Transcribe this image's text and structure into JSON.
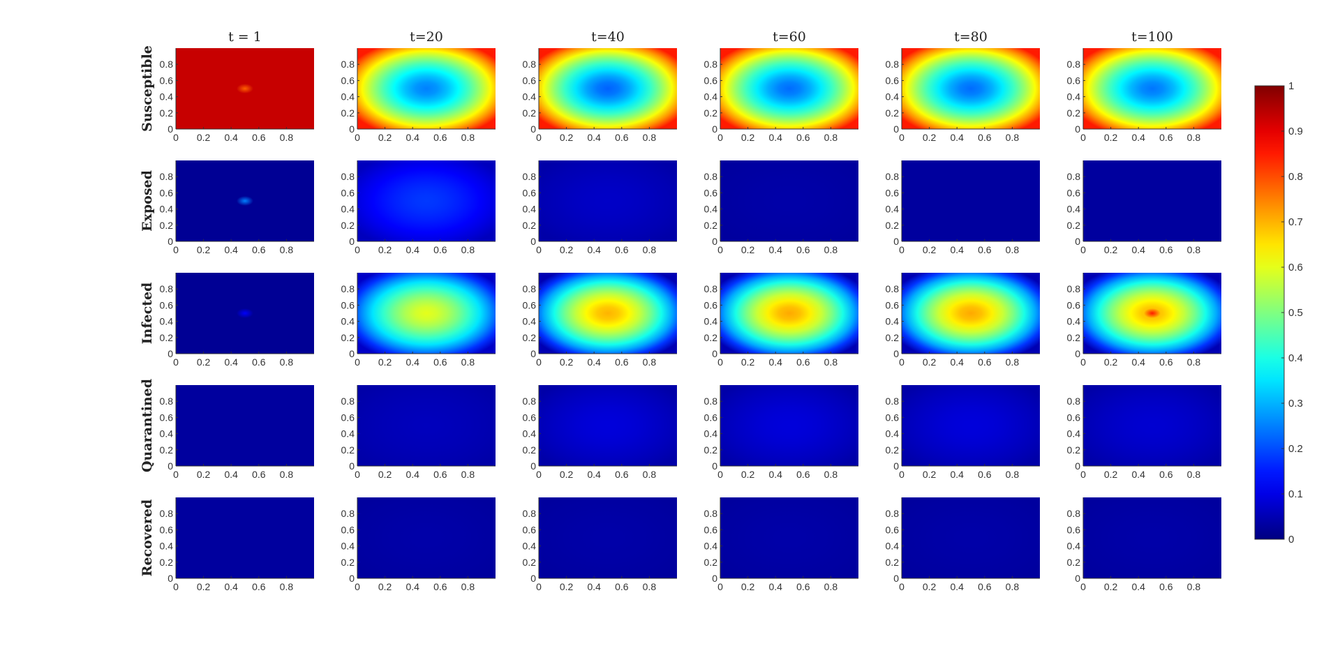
{
  "chart_data": {
    "type": "heatmap",
    "columns": [
      "t = 1",
      "t=20",
      "t=40",
      "t=60",
      "t=80",
      "t=100"
    ],
    "rows": [
      "Susceptible",
      "Exposed",
      "Infected",
      "Quarantined",
      "Recovered"
    ],
    "x_ticks": [
      "0",
      "0.2",
      "0.4",
      "0.6",
      "0.8"
    ],
    "y_ticks": [
      "0",
      "0.2",
      "0.4",
      "0.6",
      "0.8"
    ],
    "xlim": [
      0,
      1
    ],
    "ylim": [
      0,
      1
    ],
    "colormap": "jet",
    "colorbar": {
      "range": [
        0,
        1
      ],
      "ticks": [
        "0",
        "0.1",
        "0.2",
        "0.3",
        "0.4",
        "0.5",
        "0.6",
        "0.7",
        "0.8",
        "0.9",
        "1"
      ]
    },
    "approx_values": {
      "Susceptible": [
        {
          "edge": 0.93,
          "center": 0.93,
          "center_spot": 0.78
        },
        {
          "edge": 0.85,
          "center": 0.25
        },
        {
          "edge": 0.85,
          "center": 0.22
        },
        {
          "edge": 0.85,
          "center": 0.23
        },
        {
          "edge": 0.85,
          "center": 0.23
        },
        {
          "edge": 0.85,
          "center": 0.24
        }
      ],
      "Exposed": [
        {
          "edge": 0.02,
          "center": 0.02,
          "center_spot": 0.25
        },
        {
          "edge": 0.06,
          "center": 0.18
        },
        {
          "edge": 0.04,
          "center": 0.07
        },
        {
          "edge": 0.03,
          "center": 0.04
        },
        {
          "edge": 0.03,
          "center": 0.03
        },
        {
          "edge": 0.03,
          "center": 0.03
        }
      ],
      "Infected": [
        {
          "edge": 0.02,
          "center": 0.02,
          "center_spot": 0.12
        },
        {
          "edge": 0.07,
          "center": 0.6
        },
        {
          "edge": 0.05,
          "center": 0.7
        },
        {
          "edge": 0.05,
          "center": 0.71
        },
        {
          "edge": 0.05,
          "center": 0.71
        },
        {
          "edge": 0.05,
          "center": 0.7,
          "center_spot": 0.85
        }
      ],
      "Quarantined": [
        {
          "edge": 0.03,
          "center": 0.03
        },
        {
          "edge": 0.04,
          "center": 0.06
        },
        {
          "edge": 0.04,
          "center": 0.09
        },
        {
          "edge": 0.04,
          "center": 0.09
        },
        {
          "edge": 0.04,
          "center": 0.09
        },
        {
          "edge": 0.04,
          "center": 0.08
        }
      ],
      "Recovered": [
        {
          "edge": 0.03,
          "center": 0.03
        },
        {
          "edge": 0.03,
          "center": 0.04
        },
        {
          "edge": 0.03,
          "center": 0.04
        },
        {
          "edge": 0.03,
          "center": 0.04
        },
        {
          "edge": 0.03,
          "center": 0.04
        },
        {
          "edge": 0.03,
          "center": 0.04
        }
      ]
    }
  }
}
